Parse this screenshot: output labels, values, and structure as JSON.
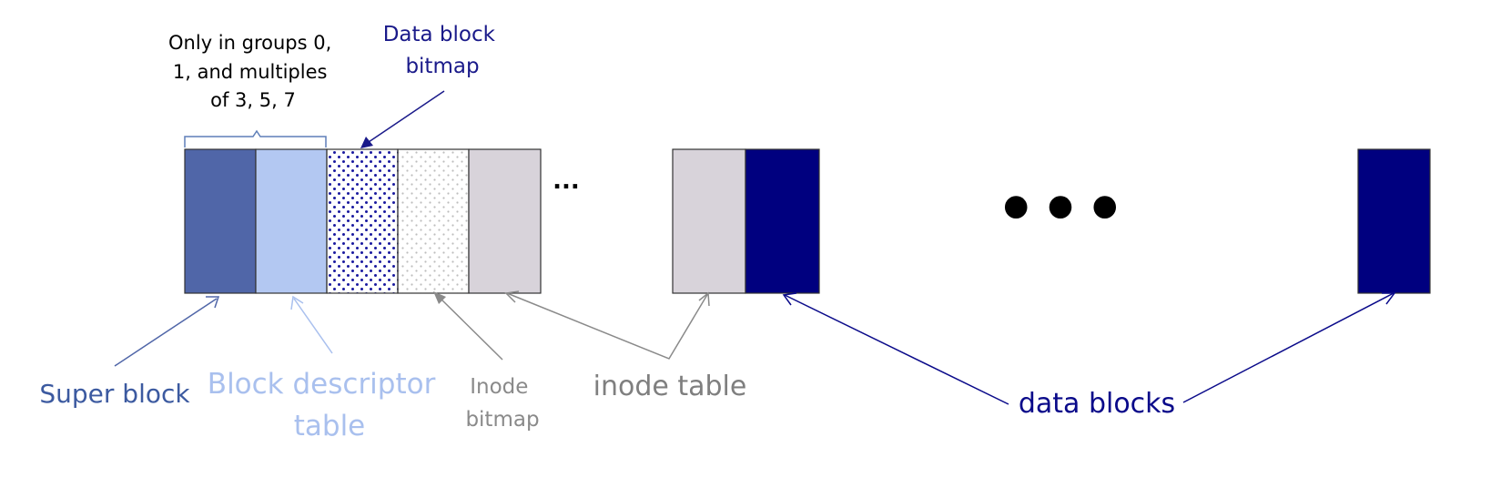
{
  "brace_note": {
    "lines": [
      "Only in groups 0,",
      "1, and multiples",
      "of 3, 5, 7"
    ]
  },
  "labels": {
    "data_block_bitmap": [
      "Data block",
      "bitmap"
    ],
    "super_block": "Super block",
    "block_descriptor_table": [
      "Block descriptor",
      "table"
    ],
    "inode_bitmap": [
      "Inode",
      "bitmap"
    ],
    "inode_table": "inode table",
    "data_blocks": "data blocks"
  },
  "ellipses": {
    "small": "...",
    "large": "•••"
  },
  "colors": {
    "super_block": "#5066a8",
    "block_descriptor": "#b3c8f2",
    "bitmap_dots": "#1a1aa0",
    "inode_bitmap_dots": "#b8b8b8",
    "inode_table": "#d8d3da",
    "data_block": "#00007f",
    "arrow_super": "#5066a8",
    "arrow_descriptor": "#a9c0ee",
    "arrow_gray": "#8a8a8a",
    "arrow_navy": "#0a0a8a"
  }
}
